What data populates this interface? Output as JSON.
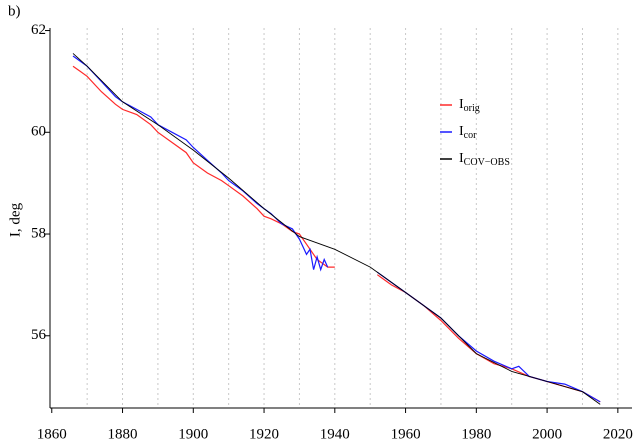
{
  "chart_data": {
    "type": "line",
    "panel_label": "b)",
    "y_label": "I, deg",
    "xlim": [
      1859.5,
      2024
    ],
    "ylim": [
      54.58,
      62.05
    ],
    "xticks": [
      1860,
      1880,
      1900,
      1920,
      1940,
      1960,
      1980,
      2000,
      2020
    ],
    "yticks": [
      56,
      58,
      60,
      62
    ],
    "xgrid": [
      1870,
      1880,
      1890,
      1900,
      1910,
      1920,
      1930,
      1940,
      1950,
      1960,
      1970,
      1980,
      1990,
      2000,
      2010,
      2020
    ],
    "legend": "upper right",
    "series": [
      {
        "name": "I",
        "name_sub": "orig",
        "color": "#ff2a2a",
        "x": [
          1866,
          1868,
          1870,
          1874,
          1878,
          1880,
          1884,
          1888,
          1890,
          1894,
          1898,
          1900,
          1904,
          1908,
          1910,
          1914,
          1918,
          1920,
          1922,
          1925,
          1928,
          1930,
          1932,
          1935,
          1938,
          1940,
          1945,
          1952,
          1956,
          1960,
          1965,
          1970,
          1975,
          1980,
          1985,
          1990,
          1995,
          2000,
          2005,
          2010,
          2015
        ],
        "values": [
          61.3,
          61.2,
          61.1,
          60.8,
          60.55,
          60.45,
          60.35,
          60.15,
          60.0,
          59.8,
          59.6,
          59.4,
          59.2,
          59.05,
          58.95,
          58.75,
          58.5,
          58.35,
          58.3,
          58.2,
          58.05,
          58.0,
          57.8,
          57.5,
          57.35,
          57.35,
          null,
          57.2,
          57.0,
          56.85,
          56.6,
          56.3,
          55.95,
          55.65,
          55.45,
          55.35,
          55.2,
          55.1,
          55.0,
          54.9,
          54.7
        ]
      },
      {
        "name": "I",
        "name_sub": "cor",
        "color": "#1a1aff",
        "x": [
          1866,
          1868,
          1870,
          1874,
          1878,
          1880,
          1884,
          1888,
          1890,
          1894,
          1898,
          1900,
          1904,
          1908,
          1910,
          1914,
          1918,
          1920,
          1922,
          1925,
          1928,
          1930,
          1931,
          1932,
          1933,
          1934,
          1935,
          1936,
          1937,
          1938,
          1945,
          1952,
          1956,
          1960,
          1965,
          1970,
          1975,
          1980,
          1985,
          1990,
          1992,
          1995,
          2000,
          2005,
          2010,
          2015
        ],
        "values": [
          61.5,
          61.4,
          61.3,
          61.0,
          60.7,
          60.6,
          60.45,
          60.3,
          60.15,
          60.0,
          59.85,
          59.7,
          59.45,
          59.2,
          59.05,
          58.85,
          58.6,
          58.5,
          58.4,
          58.2,
          58.1,
          57.9,
          57.75,
          57.6,
          57.7,
          57.3,
          57.55,
          57.3,
          57.5,
          57.35,
          null,
          57.25,
          57.05,
          56.85,
          56.6,
          56.35,
          56.0,
          55.7,
          55.5,
          55.35,
          55.4,
          55.2,
          55.1,
          55.05,
          54.9,
          54.7
        ]
      },
      {
        "name": "I",
        "name_sub": "COV−OBS",
        "color": "#000000",
        "x": [
          1866,
          1870,
          1880,
          1890,
          1900,
          1910,
          1920,
          1930,
          1940,
          1950,
          1960,
          1970,
          1980,
          1990,
          2000,
          2010,
          2015
        ],
        "values": [
          61.55,
          61.3,
          60.6,
          60.15,
          59.65,
          59.1,
          58.5,
          57.95,
          57.7,
          57.35,
          56.85,
          56.35,
          55.65,
          55.3,
          55.1,
          54.9,
          54.65
        ]
      }
    ]
  }
}
